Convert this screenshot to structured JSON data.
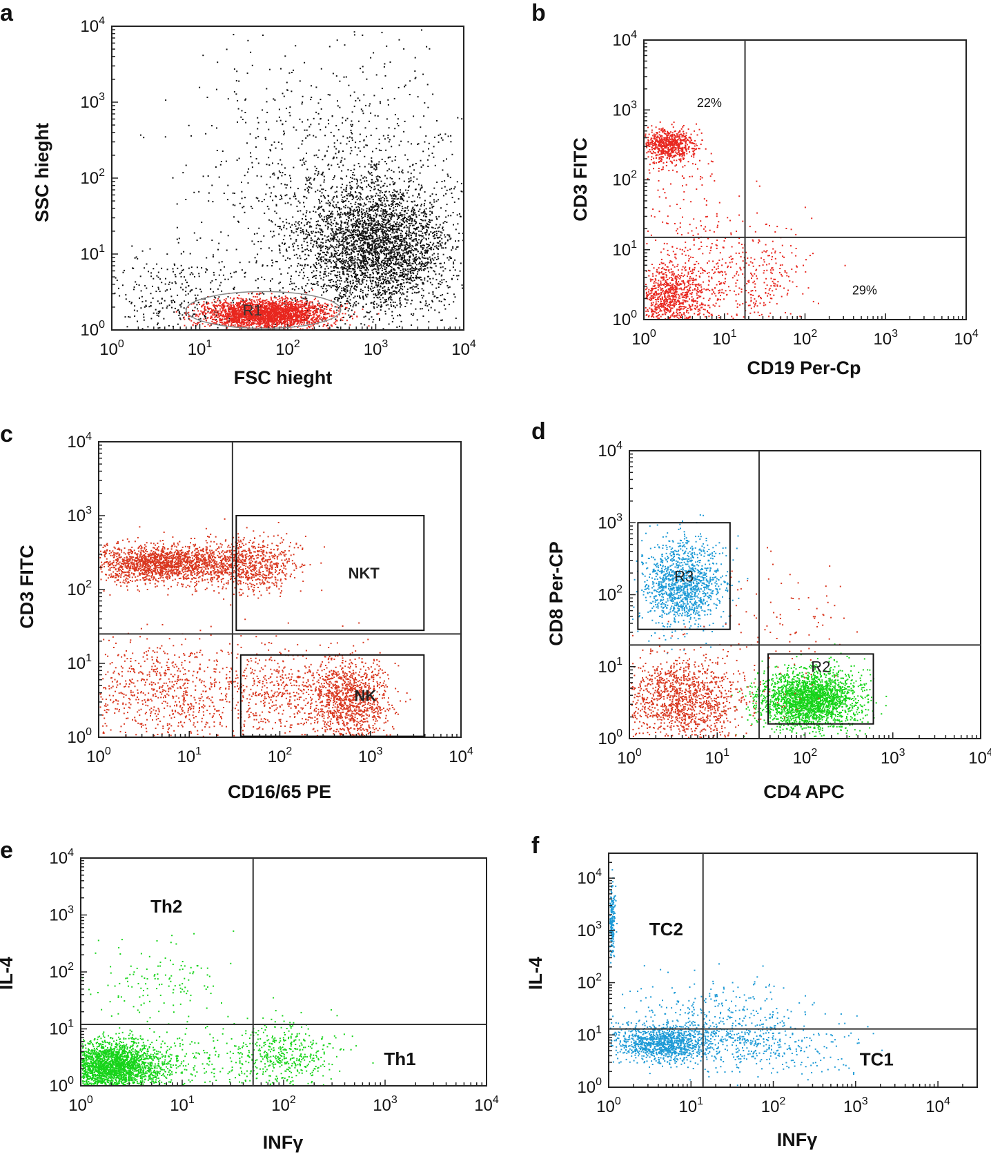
{
  "colors": {
    "black": "#111111",
    "red": "#e8271f",
    "red_dark": "#d9371f",
    "blue": "#1d9ad6",
    "green": "#17d41a",
    "gate": "#555555"
  },
  "chart_data": [
    {
      "panel_letter": "a",
      "type": "scatter",
      "scale": "log",
      "xlabel": "FSC hieght",
      "ylabel": "SSC hieght",
      "xlim": [
        1,
        10000
      ],
      "ylim": [
        1,
        10000
      ],
      "tick_labels": {
        "base": "10",
        "exps": [
          "0",
          "1",
          "2",
          "3",
          "4"
        ]
      },
      "quadrants": null,
      "gates": [
        {
          "label": "R1",
          "shape": "ellipse",
          "x": [
            7,
            400
          ],
          "y": [
            1.05,
            3.2
          ],
          "color": "#888888"
        }
      ],
      "annotations": [],
      "clusters": [
        {
          "color": "#111111",
          "n": 3200,
          "x_log_mean": 3.0,
          "x_log_sd": 0.42,
          "y_log_mean": 1.1,
          "y_log_sd": 0.42
        },
        {
          "color": "#111111",
          "n": 1200,
          "x_log_mean": 2.6,
          "x_log_sd": 0.8,
          "y_log_mean": 1.8,
          "y_log_sd": 0.9
        },
        {
          "color": "#111111",
          "n": 380,
          "x_log_mean": 0.8,
          "x_log_sd": 0.45,
          "y_log_mean": 0.35,
          "y_log_sd": 0.35
        },
        {
          "color": "#e8271f",
          "n": 2600,
          "x_log_mean": 1.75,
          "x_log_sd": 0.35,
          "y_log_mean": 0.22,
          "y_log_sd": 0.09
        }
      ]
    },
    {
      "panel_letter": "b",
      "type": "scatter",
      "scale": "log",
      "xlabel": "CD19 Per-Cp",
      "ylabel": "CD3 FITC",
      "xlim": [
        1,
        10000
      ],
      "ylim": [
        1,
        10000
      ],
      "tick_labels": {
        "base": "10",
        "exps": [
          "0",
          "1",
          "2",
          "3",
          "4"
        ]
      },
      "quadrants": {
        "x": 18,
        "y": 15
      },
      "gates": [],
      "annotations": [
        {
          "text": "22%",
          "x": 6.5,
          "y": 1100
        },
        {
          "text": "29%",
          "x": 550,
          "y": 2.3
        }
      ],
      "clusters": [
        {
          "color": "#e8271f",
          "n": 700,
          "x_log_mean": 0.3,
          "x_log_sd": 0.17,
          "y_log_mean": 2.5,
          "y_log_sd": 0.12
        },
        {
          "color": "#e8271f",
          "n": 900,
          "x_log_mean": 0.3,
          "x_log_sd": 0.25,
          "y_log_mean": 0.3,
          "y_log_sd": 0.25
        },
        {
          "color": "#e8271f",
          "n": 350,
          "x_log_mean": 0.8,
          "x_log_sd": 0.45,
          "y_log_mean": 0.7,
          "y_log_sd": 0.4
        },
        {
          "color": "#e8271f",
          "n": 160,
          "x_log_mean": 1.5,
          "x_log_sd": 0.25,
          "y_log_mean": 0.6,
          "y_log_sd": 0.35
        },
        {
          "color": "#e8271f",
          "n": 80,
          "x_log_mean": 0.4,
          "x_log_sd": 0.3,
          "y_log_mean": 1.8,
          "y_log_sd": 0.4
        }
      ]
    },
    {
      "panel_letter": "c",
      "type": "scatter",
      "scale": "log",
      "xlabel": "CD16/65 PE",
      "ylabel": "CD3 FITC",
      "xlim": [
        1,
        10000
      ],
      "ylim": [
        1,
        10000
      ],
      "tick_labels": {
        "base": "10",
        "exps": [
          "0",
          "1",
          "2",
          "3",
          "4"
        ]
      },
      "quadrants": {
        "x": 30,
        "y": 25
      },
      "gates": [
        {
          "label": "NKT",
          "shape": "rect",
          "x": [
            33,
            3900
          ],
          "y": [
            28,
            1000
          ],
          "color": "#111111",
          "bold": true
        },
        {
          "label": "NK",
          "shape": "rect",
          "x": [
            37,
            3900
          ],
          "y": [
            1.03,
            13
          ],
          "color": "#111111",
          "bold": true
        }
      ],
      "annotations": [],
      "clusters": [
        {
          "color": "#d9371f",
          "n": 1900,
          "x_log_mean": 0.75,
          "x_log_sd": 0.45,
          "y_log_mean": 2.35,
          "y_log_sd": 0.13
        },
        {
          "color": "#d9371f",
          "n": 600,
          "x_log_mean": 1.7,
          "x_log_sd": 0.25,
          "y_log_mean": 2.35,
          "y_log_sd": 0.18
        },
        {
          "color": "#d9371f",
          "n": 800,
          "x_log_mean": 0.7,
          "x_log_sd": 0.5,
          "y_log_mean": 0.6,
          "y_log_sd": 0.35
        },
        {
          "color": "#d9371f",
          "n": 1100,
          "x_log_mean": 2.75,
          "x_log_sd": 0.22,
          "y_log_mean": 0.5,
          "y_log_sd": 0.28
        },
        {
          "color": "#d9371f",
          "n": 500,
          "x_log_mean": 2.0,
          "x_log_sd": 0.4,
          "y_log_mean": 0.6,
          "y_log_sd": 0.3
        }
      ]
    },
    {
      "panel_letter": "d",
      "type": "scatter",
      "scale": "log",
      "xlabel": "CD4 APC",
      "ylabel": "CD8 Per-CP",
      "xlim": [
        1,
        10000
      ],
      "ylim": [
        1,
        10000
      ],
      "tick_labels": {
        "base": "10",
        "exps": [
          "0",
          "1",
          "2",
          "3",
          "4"
        ]
      },
      "quadrants": {
        "x": 30,
        "y": 20
      },
      "gates": [
        {
          "label": "R3",
          "shape": "rect",
          "x": [
            1.25,
            14
          ],
          "y": [
            33,
            1000
          ],
          "color": "#111111"
        },
        {
          "label": "R2",
          "shape": "rect",
          "x": [
            38,
            600
          ],
          "y": [
            1.6,
            15
          ],
          "color": "#111111"
        }
      ],
      "annotations": [],
      "clusters": [
        {
          "color": "#1d9ad6",
          "n": 1300,
          "x_log_mean": 0.6,
          "x_log_sd": 0.22,
          "y_log_mean": 2.15,
          "y_log_sd": 0.3
        },
        {
          "color": "#17d41a",
          "n": 2400,
          "x_log_mean": 2.05,
          "x_log_sd": 0.28,
          "y_log_mean": 0.55,
          "y_log_sd": 0.2
        },
        {
          "color": "#d9371f",
          "n": 1300,
          "x_log_mean": 0.6,
          "x_log_sd": 0.35,
          "y_log_mean": 0.55,
          "y_log_sd": 0.3
        },
        {
          "color": "#d9371f",
          "n": 100,
          "x_log_mean": 1.8,
          "x_log_sd": 0.4,
          "y_log_mean": 1.5,
          "y_log_sd": 0.5
        }
      ]
    },
    {
      "panel_letter": "e",
      "type": "scatter",
      "scale": "log",
      "xlabel": "INFγ",
      "ylabel": "IL-4",
      "xlim": [
        1,
        10000
      ],
      "ylim": [
        1,
        10000
      ],
      "tick_labels": {
        "base": "10",
        "exps": [
          "0",
          "1",
          "2",
          "3",
          "4"
        ]
      },
      "quadrants": {
        "x": 50,
        "y": 12
      },
      "gates": [],
      "annotations": [
        {
          "text": "Th2",
          "x": 7,
          "y": 1100,
          "bold": true
        },
        {
          "text": "Th1",
          "x": 1400,
          "y": 2.3,
          "bold": true
        }
      ],
      "clusters": [
        {
          "color": "#17d41a",
          "n": 2600,
          "x_log_mean": 0.3,
          "x_log_sd": 0.25,
          "y_log_mean": 0.35,
          "y_log_sd": 0.22
        },
        {
          "color": "#17d41a",
          "n": 450,
          "x_log_mean": 2.0,
          "x_log_sd": 0.25,
          "y_log_mean": 0.55,
          "y_log_sd": 0.3
        },
        {
          "color": "#17d41a",
          "n": 130,
          "x_log_mean": 0.75,
          "x_log_sd": 0.3,
          "y_log_mean": 1.8,
          "y_log_sd": 0.35
        },
        {
          "color": "#17d41a",
          "n": 200,
          "x_log_mean": 1.1,
          "x_log_sd": 0.4,
          "y_log_mean": 0.4,
          "y_log_sd": 0.3
        }
      ]
    },
    {
      "panel_letter": "f",
      "type": "scatter",
      "scale": "log",
      "xlabel": "INFγ",
      "ylabel": "IL-4",
      "xlim": [
        1,
        30000
      ],
      "ylim": [
        1,
        30000
      ],
      "tick_labels": {
        "base": "10",
        "exps": [
          "0",
          "1",
          "2",
          "3",
          "4"
        ]
      },
      "quadrants": {
        "x": 14,
        "y": 13
      },
      "gates": [],
      "annotations": [
        {
          "text": "TC2",
          "x": 5,
          "y": 800,
          "bold": true
        },
        {
          "text": "TC1",
          "x": 1800,
          "y": 2.6,
          "bold": true
        }
      ],
      "clusters": [
        {
          "color": "#1d9ad6",
          "n": 1100,
          "x_log_mean": 0.65,
          "x_log_sd": 0.3,
          "y_log_mean": 0.85,
          "y_log_sd": 0.18
        },
        {
          "color": "#1d9ad6",
          "n": 420,
          "x_log_mean": 1.8,
          "x_log_sd": 0.5,
          "y_log_mean": 0.85,
          "y_log_sd": 0.3
        },
        {
          "color": "#1d9ad6",
          "n": 200,
          "x_log_mean": 0.03,
          "x_log_sd": 0.02,
          "y_log_mean": 3.2,
          "y_log_sd": 0.35
        },
        {
          "color": "#1d9ad6",
          "n": 250,
          "x_log_mean": 1.2,
          "x_log_sd": 0.6,
          "y_log_mean": 1.4,
          "y_log_sd": 0.35
        }
      ]
    }
  ]
}
